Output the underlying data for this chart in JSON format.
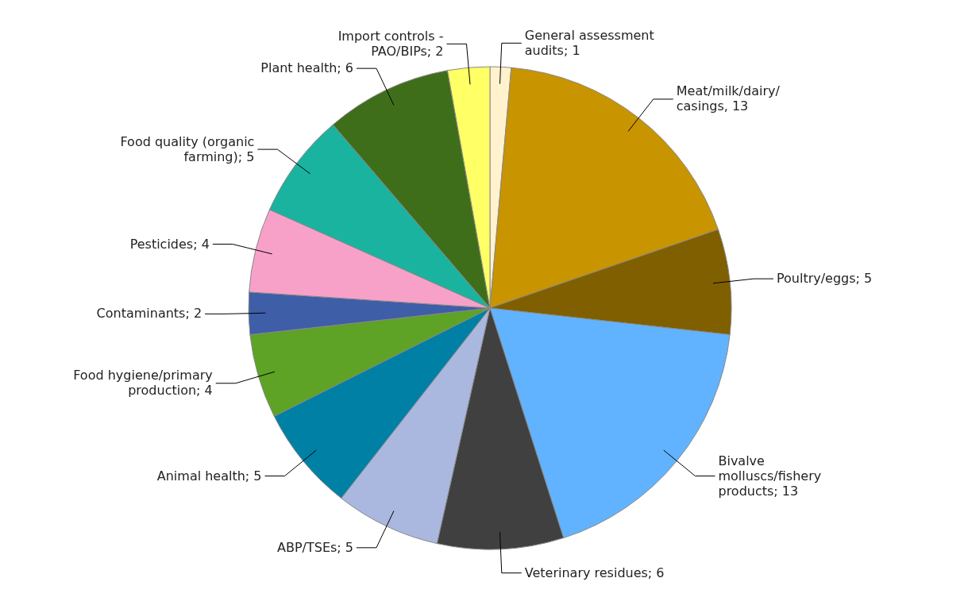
{
  "chart_data": {
    "type": "pie",
    "categories": [
      "General assessment audits; 1",
      "Meat/milk/dairy/ casings, 13",
      "Poultry/eggs; 5",
      "Bivalve molluscs/fishery products; 13",
      "Veterinary residues; 6",
      "ABP/TSEs; 5",
      "Animal health; 5",
      "Food hygiene/primary production; 4",
      "Contaminants; 2",
      "Pesticides; 4",
      "Food quality (organic farming); 5",
      "Plant health; 6",
      "Import controls - PAO/BIPs; 2"
    ],
    "values": [
      1,
      13,
      5,
      13,
      6,
      5,
      5,
      4,
      2,
      4,
      5,
      6,
      2
    ],
    "colors": [
      "#fff2cc",
      "#c89400",
      "#7f5f00",
      "#61b3ff",
      "#404040",
      "#aab8e0",
      "#0080a4",
      "#5ea226",
      "#3e5ea8",
      "#f7a1c9",
      "#1ab3a0",
      "#3f6e1a",
      "#ffff66"
    ]
  }
}
